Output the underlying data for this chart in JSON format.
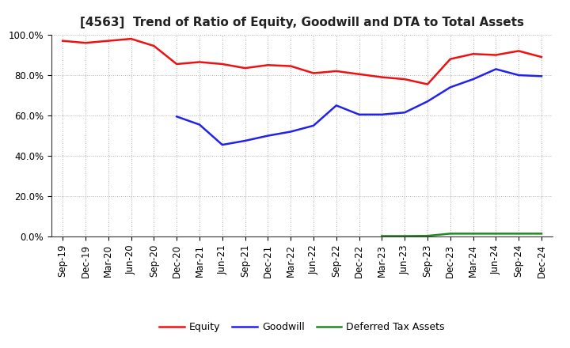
{
  "title": "[4563]  Trend of Ratio of Equity, Goodwill and DTA to Total Assets",
  "x_labels": [
    "Sep-19",
    "Dec-19",
    "Mar-20",
    "Jun-20",
    "Sep-20",
    "Dec-20",
    "Mar-21",
    "Jun-21",
    "Sep-21",
    "Dec-21",
    "Mar-22",
    "Jun-22",
    "Sep-22",
    "Dec-22",
    "Mar-23",
    "Jun-23",
    "Sep-23",
    "Dec-23",
    "Mar-24",
    "Jun-24",
    "Sep-24",
    "Dec-24"
  ],
  "equity": [
    97.0,
    96.0,
    97.0,
    98.0,
    94.5,
    85.5,
    86.5,
    85.5,
    83.5,
    85.0,
    84.5,
    81.0,
    82.0,
    80.5,
    79.0,
    78.0,
    75.5,
    88.0,
    90.5,
    90.0,
    92.0,
    89.0
  ],
  "goodwill": [
    null,
    null,
    null,
    null,
    null,
    59.5,
    55.5,
    45.5,
    47.5,
    50.0,
    52.0,
    55.0,
    65.0,
    60.5,
    60.5,
    61.5,
    67.0,
    74.0,
    78.0,
    83.0,
    80.0,
    79.5
  ],
  "dta": [
    null,
    null,
    null,
    null,
    null,
    null,
    null,
    null,
    null,
    null,
    null,
    null,
    null,
    null,
    0.3,
    0.3,
    0.4,
    1.5,
    1.5,
    1.5,
    1.5,
    1.5
  ],
  "equity_color": "#ee1111",
  "goodwill_color": "#2222ee",
  "dta_color": "#228822",
  "ylim": [
    0,
    100
  ],
  "yticks": [
    0,
    20,
    40,
    60,
    80,
    100
  ],
  "ytick_labels": [
    "0.0%",
    "20.0%",
    "40.0%",
    "60.0%",
    "80.0%",
    "100.0%"
  ],
  "legend_labels": [
    "Equity",
    "Goodwill",
    "Deferred Tax Assets"
  ],
  "background_color": "#ffffff",
  "grid_color": "#999999",
  "line_width": 1.8,
  "title_fontsize": 11,
  "tick_fontsize": 8.5,
  "legend_fontsize": 9
}
